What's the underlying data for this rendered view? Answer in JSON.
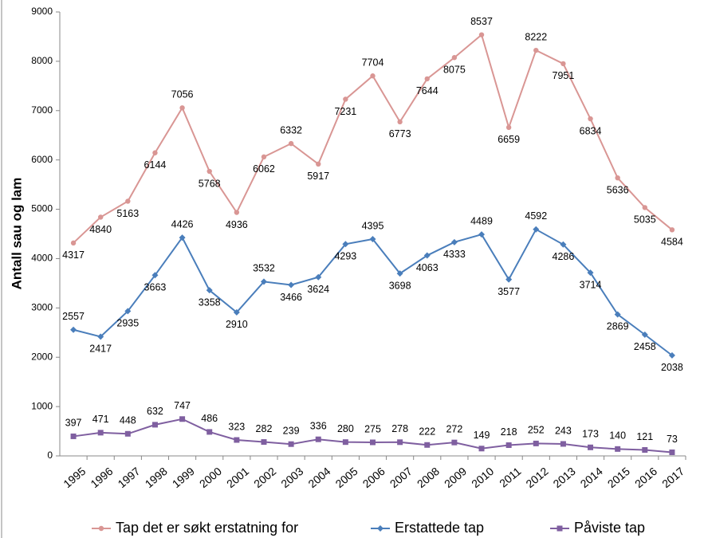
{
  "chart_data": {
    "type": "line",
    "y_label": "Antall sau og lam",
    "categories": [
      "1995",
      "1996",
      "1997",
      "1998",
      "1999",
      "2000",
      "2001",
      "2002",
      "2003",
      "2004",
      "2005",
      "2006",
      "2007",
      "2008",
      "2009",
      "2010",
      "2011",
      "2012",
      "2013",
      "2014",
      "2015",
      "2016",
      "2017"
    ],
    "series": [
      {
        "name": "Tap det er søkt erstatning for",
        "color": "#d99694",
        "marker": "circle",
        "values": [
          4317,
          4840,
          5163,
          6144,
          7056,
          5768,
          4936,
          6062,
          6332,
          5917,
          7231,
          7704,
          6773,
          7644,
          8075,
          8537,
          6659,
          8222,
          7951,
          6834,
          5636,
          5035,
          4584
        ]
      },
      {
        "name": "Erstattede tap",
        "color": "#4a7ebb",
        "marker": "diamond",
        "values": [
          2557,
          2417,
          2935,
          3663,
          4426,
          3358,
          2910,
          3532,
          3466,
          3624,
          4293,
          4395,
          3698,
          4063,
          4333,
          4489,
          3577,
          4592,
          4286,
          3714,
          2869,
          2458,
          2038
        ]
      },
      {
        "name": "Påviste tap",
        "color": "#7f5fa0",
        "marker": "square",
        "values": [
          397,
          471,
          448,
          632,
          747,
          486,
          323,
          282,
          239,
          336,
          280,
          275,
          278,
          222,
          272,
          149,
          218,
          252,
          243,
          173,
          140,
          121,
          73
        ]
      }
    ],
    "ylim": [
      0,
      9000
    ],
    "yticks": [
      0,
      1000,
      2000,
      3000,
      4000,
      5000,
      6000,
      7000,
      8000,
      9000
    ],
    "grid": false
  }
}
